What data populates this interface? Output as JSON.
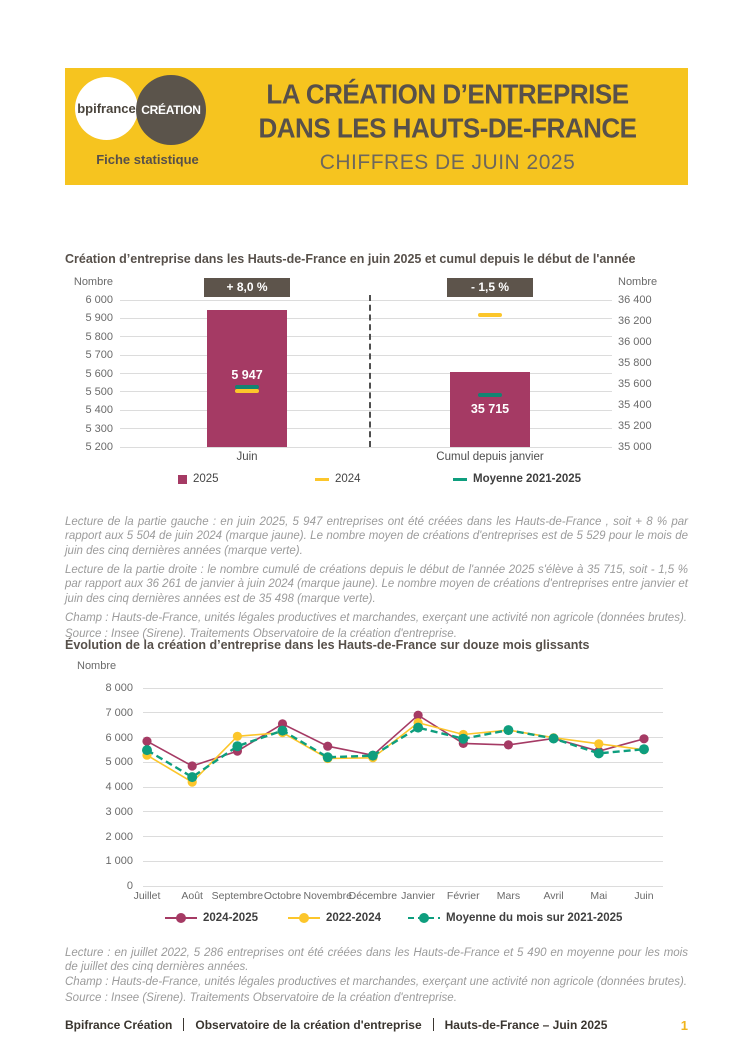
{
  "header": {
    "logo_primary": "bpifrance",
    "logo_secondary": "CRÉATION",
    "tagline": "Fiche statistique",
    "title_line1": "LA CRÉATION D’ENTREPRISE",
    "title_line2": "DANS LES HAUTS-DE-FRANCE",
    "subtitle": "CHIFFRES DE JUIN 2025"
  },
  "colors": {
    "band_yellow": "#F6C41F",
    "dark_brown": "#57504A",
    "badge_brown": "#5D544B",
    "maroon_2025": "#A53A64",
    "yellow_2024": "#FCC62B",
    "teal_moyenne": "#0E9E7E"
  },
  "chart_data": [
    {
      "type": "bar",
      "title": "Création d’entreprise dans les Hauts-de-France  en juin 2025 et cumul depuis le début de l'année",
      "ylabel_left": "Nombre",
      "ylabel_right": "Nombre",
      "left_axis": {
        "min": 5200,
        "max": 6000,
        "step": 100
      },
      "right_axis": {
        "min": 35000,
        "max": 36400,
        "step": 200
      },
      "groups": [
        {
          "category": "Juin",
          "badge": "+ 8,0 %",
          "axis": "left",
          "value_2025": 5947,
          "mark_2024": 5504,
          "mark_moyenne_2021_2025": 5529
        },
        {
          "category": "Cumul depuis janvier",
          "badge": "- 1,5 %",
          "axis": "right",
          "value_2025": 35715,
          "mark_2024": 36261,
          "mark_moyenne_2021_2025": 35498
        }
      ],
      "legend": [
        "2025",
        "2024",
        "Moyenne 2021-2025"
      ]
    },
    {
      "type": "line",
      "title": "Évolution de la création d’entreprise dans les Hauts-de-France  sur douze mois glissants",
      "ylabel": "Nombre",
      "y_axis": {
        "min": 0,
        "max": 8000,
        "step": 1000
      },
      "categories": [
        "Juillet",
        "Août",
        "Septembre",
        "Octobre",
        "Novembre",
        "Décembre",
        "Janvier",
        "Février",
        "Mars",
        "Avril",
        "Mai",
        "Juin"
      ],
      "series": [
        {
          "name": "2024-2025",
          "color": "#A53A64",
          "dashed": false,
          "values": [
            5850,
            4850,
            5450,
            6550,
            5650,
            5280,
            6900,
            5760,
            5700,
            5960,
            5448,
            5947
          ]
        },
        {
          "name": "2022-2024",
          "color": "#FCC62B",
          "dashed": false,
          "values": [
            5286,
            4200,
            6050,
            6200,
            5150,
            5180,
            6600,
            6120,
            6300,
            5990,
            5747,
            5504
          ]
        },
        {
          "name": "Moyenne du mois sur 2021-2025",
          "color": "#0E9E7E",
          "dashed": true,
          "values": [
            5490,
            4400,
            5650,
            6280,
            5200,
            5270,
            6400,
            5950,
            6300,
            5960,
            5359,
            5529
          ]
        }
      ],
      "legend_position": "bottom",
      "grid": true
    }
  ],
  "notes1": {
    "lecture_gauche": "Lecture de la partie gauche : en juin 2025, 5 947 entreprises ont été créées dans les Hauts-de-France , soit + 8 % par rapport aux 5 504 de juin 2024 (marque jaune). Le nombre moyen de créations d'entreprises est de 5 529 pour le mois de juin des cinq dernières années (marque verte).",
    "lecture_droite": "Lecture de la partie droite : le nombre cumulé de créations depuis le début de l'année 2025 s'élève à 35 715, soit - 1,5 % par rapport aux 36 261 de janvier à juin 2024 (marque jaune). Le nombre moyen de créations d'entreprises entre janvier et juin des cinq dernières années est de 35 498 (marque verte).",
    "champ": "Champ : Hauts-de-France, unités légales productives et marchandes, exerçant une activité non agricole (données brutes).",
    "source": "Source : Insee (Sirene). Traitements Observatoire de la création d'entreprise."
  },
  "notes2": {
    "lecture": "Lecture : en juillet 2022, 5 286 entreprises ont été créées dans les Hauts-de-France  et 5 490 en moyenne pour les mois de juillet des cinq dernières années.",
    "champ": "Champ : Hauts-de-France, unités légales productives et marchandes, exerçant une activité non agricole (données brutes).",
    "source": "Source : Insee (Sirene). Traitements Observatoire de la création d'entreprise."
  },
  "footer": {
    "part1": "Bpifrance Création",
    "part2": "Observatoire de la création d'entreprise",
    "part3": "Hauts-de-France – Juin 2025",
    "page": "1"
  }
}
